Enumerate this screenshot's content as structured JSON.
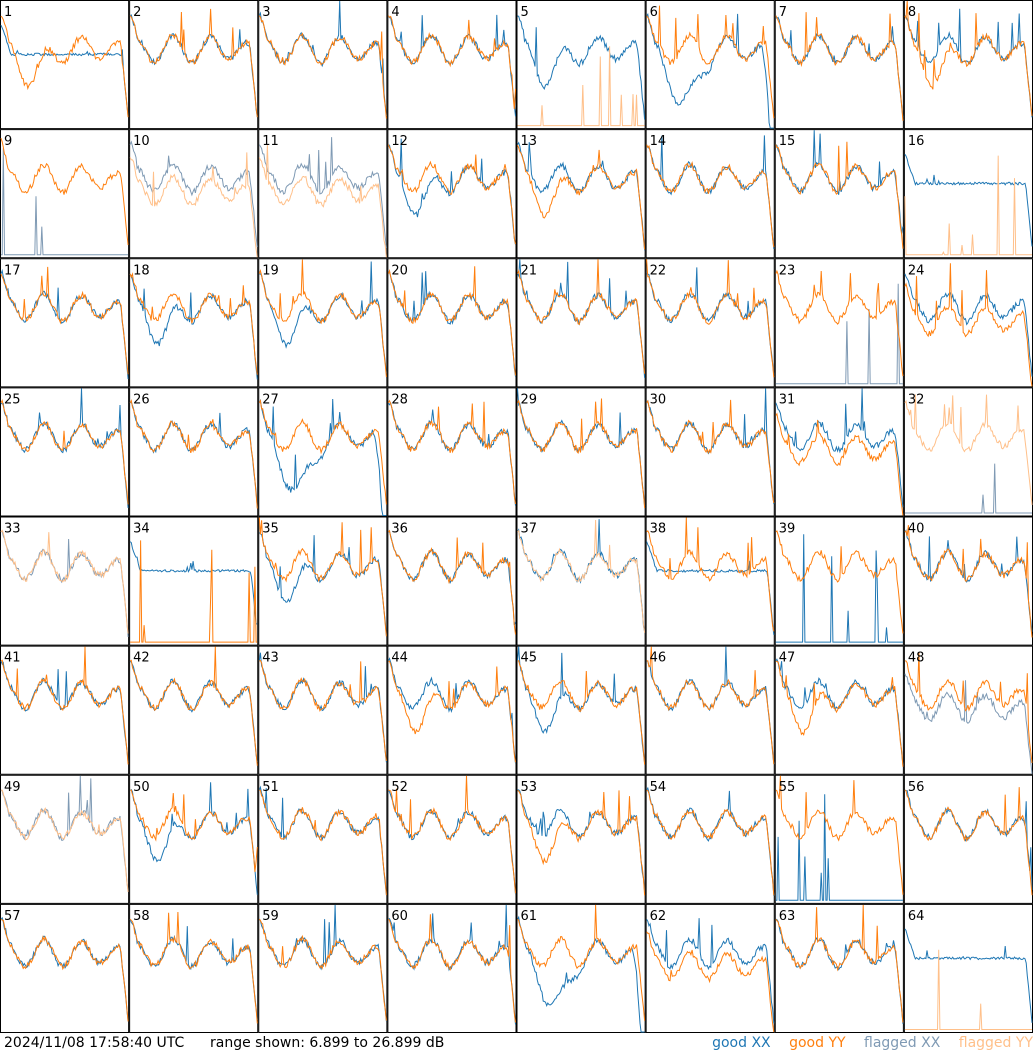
{
  "colors": {
    "good_xx": "#1f77b4",
    "good_yy": "#ff7f0e",
    "flagged_xx": "#7f9ab4",
    "flagged_yy": "#ffc08a"
  },
  "footer": {
    "timestamp": "2024/11/08 17:58:40 UTC",
    "range": "range shown: 6.899 to 26.899 dB"
  },
  "legend": {
    "good": "good",
    "flagged": "flagged",
    "xx": "XX",
    "yy": "YY"
  },
  "chart_data": {
    "type": "line",
    "grid": "8x8 small multiples",
    "y_range_db": [
      6.899,
      26.899
    ],
    "panels": [
      {
        "label": "1",
        "xx_flag": false,
        "yy_flag": false,
        "xx_shape": "flat",
        "yy_shape": "dip"
      },
      {
        "label": "2",
        "xx_flag": false,
        "yy_flag": false,
        "xx_shape": "normal",
        "yy_shape": "normal"
      },
      {
        "label": "3",
        "xx_flag": false,
        "yy_flag": false,
        "xx_shape": "normal",
        "yy_shape": "normal"
      },
      {
        "label": "4",
        "xx_flag": false,
        "yy_flag": false,
        "xx_shape": "normal",
        "yy_shape": "normal"
      },
      {
        "label": "5",
        "xx_flag": false,
        "yy_flag": true,
        "xx_shape": "dip",
        "yy_shape": "spikes"
      },
      {
        "label": "6",
        "xx_flag": false,
        "yy_flag": false,
        "xx_shape": "deepdip",
        "yy_shape": "normal"
      },
      {
        "label": "7",
        "xx_flag": false,
        "yy_flag": false,
        "xx_shape": "normal",
        "yy_shape": "normal"
      },
      {
        "label": "8",
        "xx_flag": false,
        "yy_flag": false,
        "xx_shape": "normal",
        "yy_shape": "dip"
      },
      {
        "label": "9",
        "xx_flag": true,
        "yy_flag": false,
        "xx_shape": "spikes",
        "yy_shape": "normal"
      },
      {
        "label": "10",
        "xx_flag": true,
        "yy_flag": true,
        "xx_shape": "normal",
        "yy_shape": "low"
      },
      {
        "label": "11",
        "xx_flag": true,
        "yy_flag": true,
        "xx_shape": "normal",
        "yy_shape": "low"
      },
      {
        "label": "12",
        "xx_flag": false,
        "yy_flag": false,
        "xx_shape": "dip",
        "yy_shape": "normal"
      },
      {
        "label": "13",
        "xx_flag": false,
        "yy_flag": false,
        "xx_shape": "normal",
        "yy_shape": "dip"
      },
      {
        "label": "14",
        "xx_flag": false,
        "yy_flag": false,
        "xx_shape": "normal",
        "yy_shape": "normal"
      },
      {
        "label": "15",
        "xx_flag": false,
        "yy_flag": false,
        "xx_shape": "normal",
        "yy_shape": "normal"
      },
      {
        "label": "16",
        "xx_flag": false,
        "yy_flag": true,
        "xx_shape": "flat",
        "yy_shape": "spikes"
      },
      {
        "label": "17",
        "xx_flag": false,
        "yy_flag": false,
        "xx_shape": "normal",
        "yy_shape": "normal"
      },
      {
        "label": "18",
        "xx_flag": false,
        "yy_flag": false,
        "xx_shape": "dip",
        "yy_shape": "normal"
      },
      {
        "label": "19",
        "xx_flag": false,
        "yy_flag": false,
        "xx_shape": "dip",
        "yy_shape": "normal"
      },
      {
        "label": "20",
        "xx_flag": false,
        "yy_flag": false,
        "xx_shape": "normal",
        "yy_shape": "normal"
      },
      {
        "label": "21",
        "xx_flag": false,
        "yy_flag": false,
        "xx_shape": "normal",
        "yy_shape": "normal"
      },
      {
        "label": "22",
        "xx_flag": false,
        "yy_flag": false,
        "xx_shape": "normal",
        "yy_shape": "normal"
      },
      {
        "label": "23",
        "xx_flag": true,
        "yy_flag": false,
        "xx_shape": "spikes",
        "yy_shape": "normal"
      },
      {
        "label": "24",
        "xx_flag": false,
        "yy_flag": false,
        "xx_shape": "normal",
        "yy_shape": "low"
      },
      {
        "label": "25",
        "xx_flag": false,
        "yy_flag": false,
        "xx_shape": "normal",
        "yy_shape": "normal"
      },
      {
        "label": "26",
        "xx_flag": false,
        "yy_flag": false,
        "xx_shape": "normal",
        "yy_shape": "normal"
      },
      {
        "label": "27",
        "xx_flag": false,
        "yy_flag": false,
        "xx_shape": "deepdip",
        "yy_shape": "normal"
      },
      {
        "label": "28",
        "xx_flag": false,
        "yy_flag": false,
        "xx_shape": "normal",
        "yy_shape": "normal"
      },
      {
        "label": "29",
        "xx_flag": false,
        "yy_flag": false,
        "xx_shape": "normal",
        "yy_shape": "normal"
      },
      {
        "label": "30",
        "xx_flag": false,
        "yy_flag": false,
        "xx_shape": "normal",
        "yy_shape": "normal"
      },
      {
        "label": "31",
        "xx_flag": false,
        "yy_flag": false,
        "xx_shape": "normal",
        "yy_shape": "low"
      },
      {
        "label": "32",
        "xx_flag": true,
        "yy_flag": true,
        "xx_shape": "spikes",
        "yy_shape": "normal"
      },
      {
        "label": "33",
        "xx_flag": true,
        "yy_flag": true,
        "xx_shape": "normal",
        "yy_shape": "normal"
      },
      {
        "label": "34",
        "xx_flag": false,
        "yy_flag": false,
        "xx_shape": "flat",
        "yy_shape": "spikes"
      },
      {
        "label": "35",
        "xx_flag": false,
        "yy_flag": false,
        "xx_shape": "dip",
        "yy_shape": "normal"
      },
      {
        "label": "36",
        "xx_flag": false,
        "yy_flag": false,
        "xx_shape": "normal",
        "yy_shape": "normal"
      },
      {
        "label": "37",
        "xx_flag": false,
        "yy_flag": true,
        "xx_shape": "normal",
        "yy_shape": "normal"
      },
      {
        "label": "38",
        "xx_flag": false,
        "yy_flag": false,
        "xx_shape": "flat",
        "yy_shape": "normal"
      },
      {
        "label": "39",
        "xx_flag": false,
        "yy_flag": false,
        "xx_shape": "spikes",
        "yy_shape": "normal"
      },
      {
        "label": "40",
        "xx_flag": false,
        "yy_flag": false,
        "xx_shape": "normal",
        "yy_shape": "normal"
      },
      {
        "label": "41",
        "xx_flag": false,
        "yy_flag": false,
        "xx_shape": "normal",
        "yy_shape": "normal"
      },
      {
        "label": "42",
        "xx_flag": false,
        "yy_flag": false,
        "xx_shape": "normal",
        "yy_shape": "normal"
      },
      {
        "label": "43",
        "xx_flag": false,
        "yy_flag": false,
        "xx_shape": "normal",
        "yy_shape": "normal"
      },
      {
        "label": "44",
        "xx_flag": false,
        "yy_flag": false,
        "xx_shape": "normal",
        "yy_shape": "dip"
      },
      {
        "label": "45",
        "xx_flag": false,
        "yy_flag": false,
        "xx_shape": "dip",
        "yy_shape": "normal"
      },
      {
        "label": "46",
        "xx_flag": false,
        "yy_flag": false,
        "xx_shape": "normal",
        "yy_shape": "normal"
      },
      {
        "label": "47",
        "xx_flag": false,
        "yy_flag": false,
        "xx_shape": "normal",
        "yy_shape": "dip"
      },
      {
        "label": "48",
        "xx_flag": true,
        "yy_flag": false,
        "xx_shape": "low",
        "yy_shape": "normal"
      },
      {
        "label": "49",
        "xx_flag": true,
        "yy_flag": true,
        "xx_shape": "normal",
        "yy_shape": "normal"
      },
      {
        "label": "50",
        "xx_flag": false,
        "yy_flag": false,
        "xx_shape": "dip",
        "yy_shape": "normal"
      },
      {
        "label": "51",
        "xx_flag": false,
        "yy_flag": false,
        "xx_shape": "normal",
        "yy_shape": "normal"
      },
      {
        "label": "52",
        "xx_flag": false,
        "yy_flag": false,
        "xx_shape": "normal",
        "yy_shape": "normal"
      },
      {
        "label": "53",
        "xx_flag": false,
        "yy_flag": false,
        "xx_shape": "normal",
        "yy_shape": "dip"
      },
      {
        "label": "54",
        "xx_flag": false,
        "yy_flag": false,
        "xx_shape": "normal",
        "yy_shape": "normal"
      },
      {
        "label": "55",
        "xx_flag": false,
        "yy_flag": false,
        "xx_shape": "spikes",
        "yy_shape": "normal"
      },
      {
        "label": "56",
        "xx_flag": false,
        "yy_flag": false,
        "xx_shape": "normal",
        "yy_shape": "normal"
      },
      {
        "label": "57",
        "xx_flag": false,
        "yy_flag": false,
        "xx_shape": "normal",
        "yy_shape": "normal"
      },
      {
        "label": "58",
        "xx_flag": false,
        "yy_flag": false,
        "xx_shape": "normal",
        "yy_shape": "normal"
      },
      {
        "label": "59",
        "xx_flag": false,
        "yy_flag": false,
        "xx_shape": "normal",
        "yy_shape": "normal"
      },
      {
        "label": "60",
        "xx_flag": false,
        "yy_flag": false,
        "xx_shape": "normal",
        "yy_shape": "normal"
      },
      {
        "label": "61",
        "xx_flag": false,
        "yy_flag": false,
        "xx_shape": "deepdip",
        "yy_shape": "normal"
      },
      {
        "label": "62",
        "xx_flag": false,
        "yy_flag": false,
        "xx_shape": "normal",
        "yy_shape": "low"
      },
      {
        "label": "63",
        "xx_flag": false,
        "yy_flag": false,
        "xx_shape": "normal",
        "yy_shape": "normal"
      },
      {
        "label": "64",
        "xx_flag": false,
        "yy_flag": true,
        "xx_shape": "flat",
        "yy_shape": "spikes"
      }
    ]
  }
}
